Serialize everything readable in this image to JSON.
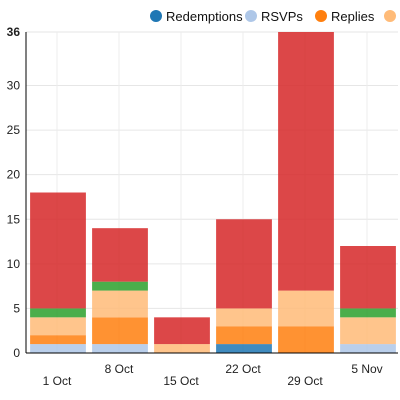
{
  "chart_data": {
    "type": "bar",
    "stacked": true,
    "categories": [
      "1 Oct",
      "8 Oct",
      "15 Oct",
      "22 Oct",
      "29 Oct",
      "5 Nov"
    ],
    "series": [
      {
        "name": "Redemptions",
        "color": "#1f77b4",
        "values": [
          0,
          0,
          0,
          1,
          0,
          0
        ]
      },
      {
        "name": "RSVPs",
        "color": "#aec7e8",
        "values": [
          1,
          1,
          0,
          0,
          0,
          1
        ]
      },
      {
        "name": "Replies",
        "color": "#ff7f0e",
        "values": [
          1,
          3,
          0,
          2,
          3,
          0
        ]
      },
      {
        "name": "",
        "color": "#ffbb78",
        "values": [
          2,
          3,
          1,
          2,
          4,
          3
        ]
      },
      {
        "name": "",
        "color": "#2ca02c",
        "values": [
          1,
          1,
          0,
          0,
          0,
          1
        ]
      },
      {
        "name": "",
        "color": "#d62728",
        "values": [
          13,
          6,
          3,
          10,
          29,
          7
        ]
      }
    ],
    "yticks": [
      0,
      5,
      10,
      15,
      20,
      25,
      30,
      36
    ],
    "ylim": [
      0,
      36
    ],
    "grid": true,
    "legend_position": "top",
    "title": "",
    "xlabel": "",
    "ylabel": ""
  }
}
